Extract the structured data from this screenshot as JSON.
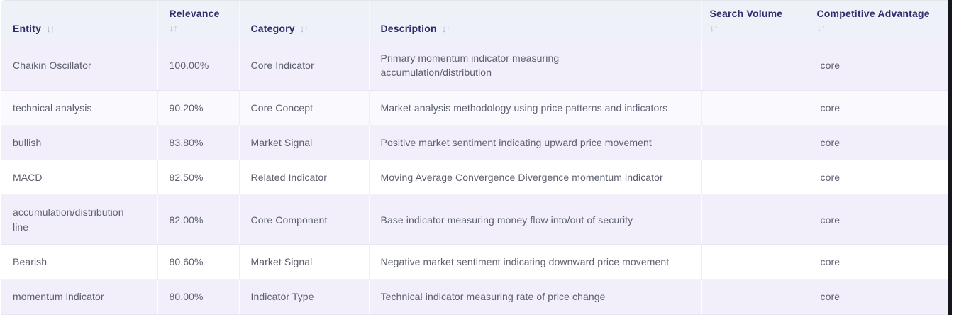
{
  "table": {
    "sort_icon": {
      "down": "↓",
      "up": "↑"
    },
    "columns": [
      {
        "label": "Entity"
      },
      {
        "label": "Relevance"
      },
      {
        "label": "Category"
      },
      {
        "label": "Description"
      },
      {
        "label": "Search Volume"
      },
      {
        "label": "Competitive Advantage"
      }
    ],
    "rows": [
      {
        "entity": "Chaikin Oscillator",
        "relevance": "100.00%",
        "category": "Core Indicator",
        "description": "Primary momentum indicator measuring\naccumulation/distribution",
        "search_volume": "",
        "competitive_advantage": "core"
      },
      {
        "entity": "technical analysis",
        "relevance": "90.20%",
        "category": "Core Concept",
        "description": "Market analysis methodology using price patterns and indicators",
        "search_volume": "",
        "competitive_advantage": "core"
      },
      {
        "entity": "bullish",
        "relevance": "83.80%",
        "category": "Market Signal",
        "description": "Positive market sentiment indicating upward price movement",
        "search_volume": "",
        "competitive_advantage": "core"
      },
      {
        "entity": "MACD",
        "relevance": "82.50%",
        "category": "Related Indicator",
        "description": "Moving Average Convergence Divergence momentum indicator",
        "search_volume": "",
        "competitive_advantage": "core"
      },
      {
        "entity": "accumulation/distribution\nline",
        "relevance": "82.00%",
        "category": "Core Component",
        "description": "Base indicator measuring money flow into/out of security",
        "search_volume": "",
        "competitive_advantage": "core"
      },
      {
        "entity": "Bearish",
        "relevance": "80.60%",
        "category": "Market Signal",
        "description": "Negative market sentiment indicating downward price movement",
        "search_volume": "",
        "competitive_advantage": "core"
      },
      {
        "entity": "momentum indicator",
        "relevance": "80.00%",
        "category": "Indicator Type",
        "description": "Technical indicator measuring rate of price change",
        "search_volume": "",
        "competitive_advantage": "core"
      }
    ]
  },
  "colors": {
    "header_bg": "#eef2f8",
    "header_text": "#312c6b",
    "row_stripe_bg": "#f2effa",
    "row_plain_bg": "#ffffff",
    "cell_text": "#5c5f6f",
    "sort_icon": "#b3b9cf",
    "dark_right_edge": "#17161c",
    "top_border": "#e0e9ea"
  }
}
